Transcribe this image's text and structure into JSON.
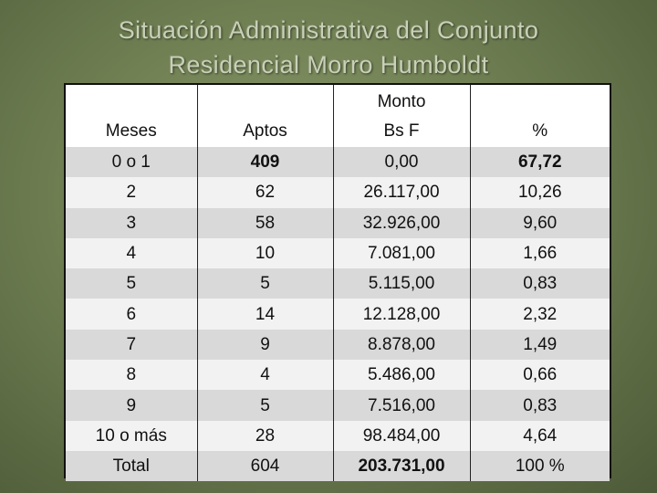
{
  "title": {
    "line1": "Situación Administrativa del Conjunto",
    "line2": "Residencial Morro Humboldt"
  },
  "table": {
    "headers": {
      "meses": "Meses",
      "aptos": "Aptos",
      "monto_line1": "Monto",
      "monto_line2": "Bs F",
      "porcentaje": "%"
    },
    "rows": [
      {
        "meses": "0 o 1",
        "aptos": "409",
        "monto": "0,00",
        "pct": "67,72"
      },
      {
        "meses": "2",
        "aptos": "62",
        "monto": "26.117,00",
        "pct": "10,26"
      },
      {
        "meses": "3",
        "aptos": "58",
        "monto": "32.926,00",
        "pct": "9,60"
      },
      {
        "meses": "4",
        "aptos": "10",
        "monto": "7.081,00",
        "pct": "1,66"
      },
      {
        "meses": "5",
        "aptos": "5",
        "monto": "5.115,00",
        "pct": "0,83"
      },
      {
        "meses": "6",
        "aptos": "14",
        "monto": "12.128,00",
        "pct": "2,32"
      },
      {
        "meses": "7",
        "aptos": "9",
        "monto": "8.878,00",
        "pct": "1,49"
      },
      {
        "meses": "8",
        "aptos": "4",
        "monto": "5.486,00",
        "pct": "0,66"
      },
      {
        "meses": "9",
        "aptos": "5",
        "monto": "7.516,00",
        "pct": "0,83"
      },
      {
        "meses": "10 o más",
        "aptos": "28",
        "monto": "98.484,00",
        "pct": "4,64"
      },
      {
        "meses": "Total",
        "aptos": "604",
        "monto": "203.731,00",
        "pct": "100 %"
      }
    ]
  },
  "colors": {
    "background": "#6f7f52",
    "title_text": "#c9d0b8",
    "row_dark": "#d9d9d9",
    "row_light": "#f2f2f2"
  }
}
